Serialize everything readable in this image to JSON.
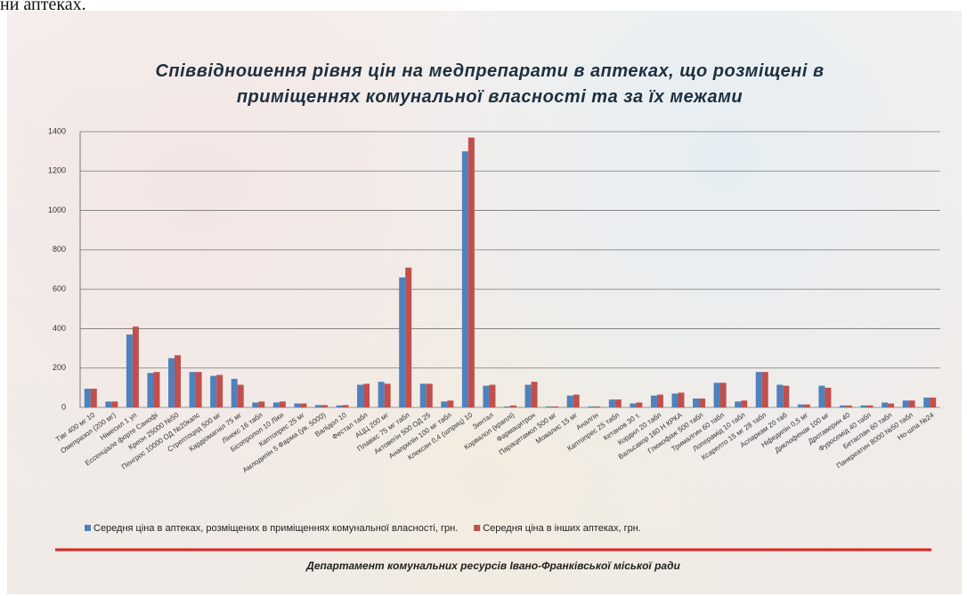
{
  "header_fragment": "ни аптеках.",
  "chart_data": {
    "type": "bar",
    "title": "Співвідношення  рівня цін на медпрепарати  в аптеках,  що розміщені в приміщеннях  комунальної  власності  та за їх межами",
    "categories": [
      "Тівг 400 мг 10",
      "Омепразол (200 мг)",
      "Німесил 1 уп",
      "Ессенціале форте Санофі",
      "Креон 25000 №50",
      "Пенгрос 10000 ОД №20капс",
      "Стрептоцид 500 мг",
      "Кардіомагніл 75 мг",
      "Лінекс 16 табл",
      "Бісопролол 10 Ліки",
      "Каптопрес 25 мг",
      "Амлодипін 5 Фарма (ув. 5000)",
      "Валідол 10",
      "Фестал табл",
      "АЦЦ 200 мг",
      "Плавікс 75 мг табл",
      "Актовегін 500 ОД 25",
      "Анаприлін 100 мг табл",
      "Клексан 0,4 (шприц) 10",
      "Зинтал",
      "Корвалол (краплі)",
      "Фармацитрон",
      "Парацетамол 500 мг",
      "Мовалис 15 мг",
      "Аналгін",
      "Каптопрес 25 табл",
      "Кетанов 30 т.",
      "Кордил 20 табл",
      "Вальсакор 160 Н КРКА",
      "Глюкофаж 500 табл",
      "Трималгин 60 табл",
      "Лоперамід 10 табл",
      "Ксарелто 15 мг 28 табл",
      "Аспаркам 20 таб",
      "Ніфедипін 0,5 мг",
      "Диклофенак 100 мг",
      "Дротаверин 40",
      "Фуросемід 40 табл",
      "Бетаспан 60 табл",
      "Панкреатин 8000 №50 табл",
      "Но-шпа №24"
    ],
    "series": [
      {
        "name": "Середня ціна в аптеках, розміщених в приміщеннях комунальної власності, грн.",
        "color": "#4f81bd",
        "values": [
          95,
          30,
          370,
          175,
          250,
          180,
          160,
          145,
          25,
          25,
          20,
          12,
          10,
          115,
          130,
          660,
          120,
          30,
          1300,
          110,
          5,
          115,
          5,
          60,
          5,
          40,
          20,
          60,
          70,
          45,
          125,
          30,
          180,
          115,
          15,
          110,
          10,
          10,
          25,
          35,
          50
        ]
      },
      {
        "name": "Середня ціна в інших аптеках, грн.",
        "color": "#c0504d",
        "values": [
          95,
          30,
          410,
          180,
          265,
          180,
          165,
          115,
          30,
          30,
          20,
          12,
          12,
          120,
          120,
          710,
          120,
          35,
          1370,
          115,
          10,
          130,
          5,
          65,
          5,
          40,
          25,
          65,
          75,
          45,
          125,
          35,
          180,
          110,
          15,
          100,
          10,
          10,
          20,
          35,
          50
        ]
      }
    ],
    "ylim": [
      0,
      1400
    ],
    "yticks": [
      0,
      200,
      400,
      600,
      800,
      1000,
      1200,
      1400
    ],
    "grid": true,
    "footer": "Департамент  комунальних ресурсів Івано-Франківської  міської ради"
  }
}
